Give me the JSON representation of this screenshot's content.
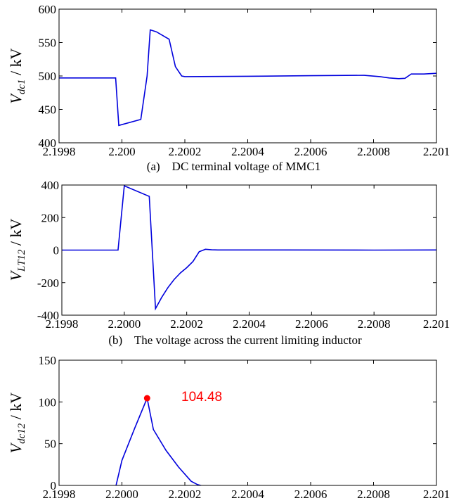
{
  "chart_data": [
    {
      "type": "line",
      "caption": "(a)    DC terminal voltage of MMC1",
      "ylabel": {
        "main": "V",
        "sub": "dc1",
        "unit": " / kV"
      },
      "xlim": [
        2.1998,
        2.201
      ],
      "ylim": [
        400,
        600
      ],
      "xticks": [
        2.1998,
        2.2,
        2.2002,
        2.2004,
        2.2006,
        2.2008,
        2.201
      ],
      "xtick_labels": [
        "2.1998",
        "2.200",
        "2.2002",
        "2.2004",
        "2.2006",
        "2.2008",
        "2.201"
      ],
      "yticks": [
        400,
        450,
        500,
        550,
        600
      ],
      "ytick_labels": [
        "400",
        "450",
        "500",
        "550",
        "600"
      ],
      "line_color": "#0000dd",
      "x": [
        2.1998,
        2.19995,
        2.19998,
        2.19999,
        2.20006,
        2.20008,
        2.20009,
        2.20011,
        2.20015,
        2.20017,
        2.20019,
        2.2002,
        2.2004,
        2.2006,
        2.20077,
        2.20082,
        2.20085,
        2.20088,
        2.2009,
        2.20092,
        2.20096,
        2.201
      ],
      "y": [
        497,
        497,
        497,
        426,
        435,
        500,
        569,
        566,
        555,
        514,
        500,
        499,
        499.5,
        500.5,
        501,
        499,
        497,
        496,
        496.5,
        503,
        503,
        504
      ]
    },
    {
      "type": "line",
      "caption": "(b)    The voltage across the current limiting inductor",
      "ylabel": {
        "main": "V",
        "sub": "LT12",
        "unit": " / kV"
      },
      "xlim": [
        2.1998,
        2.201
      ],
      "ylim": [
        -400,
        400
      ],
      "xticks": [
        2.1998,
        2.2,
        2.2002,
        2.2004,
        2.2006,
        2.2008,
        2.201
      ],
      "xtick_labels": [
        "2.1998",
        "2.2000",
        "2.2002",
        "2.2004",
        "2.2006",
        "2.2008",
        "2.201"
      ],
      "yticks": [
        -400,
        -200,
        0,
        200,
        400
      ],
      "ytick_labels": [
        "-400",
        "-200",
        "0",
        "200",
        "400"
      ],
      "line_color": "#0000dd",
      "x": [
        2.1998,
        2.19998,
        2.2,
        2.20008,
        2.2001,
        2.20012,
        2.20014,
        2.20016,
        2.20018,
        2.2002,
        2.20022,
        2.20024,
        2.20026,
        2.20028,
        2.2003,
        2.2005,
        2.2008,
        2.201
      ],
      "y": [
        0,
        0,
        395,
        330,
        -360,
        -290,
        -230,
        -180,
        -140,
        -108,
        -70,
        -10,
        5,
        2,
        1,
        1,
        0,
        1
      ]
    },
    {
      "type": "line",
      "caption": "",
      "ylabel": {
        "main": "V",
        "sub": "dc12",
        "unit": " / kV"
      },
      "xlim": [
        2.1998,
        2.201
      ],
      "ylim": [
        0,
        150
      ],
      "xticks": [
        2.1998,
        2.2,
        2.2002,
        2.2004,
        2.2006,
        2.2008,
        2.201
      ],
      "xtick_labels": [
        "2.1998",
        "2.2000",
        "2.2002",
        "2.2004",
        "2.2006",
        "2.2008",
        "2.201"
      ],
      "yticks": [
        0,
        50,
        100,
        150
      ],
      "ytick_labels": [
        "0",
        "50",
        "100",
        "150"
      ],
      "line_color": "#0000dd",
      "x": [
        2.1998,
        2.19998,
        2.2,
        2.20004,
        2.20008,
        2.2001,
        2.20014,
        2.20018,
        2.20022,
        2.20024,
        2.20026,
        2.2003,
        2.2005,
        2.201
      ],
      "y": [
        -2,
        -2,
        30,
        68,
        104.48,
        67,
        42,
        22,
        5,
        1,
        -1,
        -1.5,
        -1.5,
        -1.5
      ],
      "peak": {
        "x": 2.20008,
        "y": 104.48,
        "label": "104.48",
        "color": "#ff0000"
      }
    }
  ]
}
